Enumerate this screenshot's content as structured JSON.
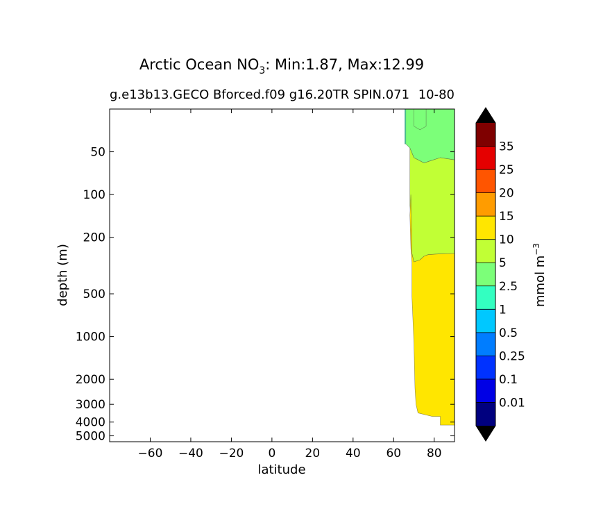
{
  "chart_data": {
    "type": "contourf",
    "title": "Arctic Ocean NO",
    "title_sub": "3",
    "title_rest": ": Min:1.87, Max:12.99",
    "subtitle": "g.e13b13.GECO Bforced.f09 g16.20TR SPIN.071",
    "subtitle_overlap": "10-80",
    "xlabel": "latitude",
    "ylabel": "depth (m)",
    "xlim": [
      -80,
      90
    ],
    "ylim": [
      5500,
      25
    ],
    "yscale": "log",
    "x_ticks": [
      -60,
      -40,
      -20,
      0,
      20,
      40,
      60,
      80
    ],
    "x_tick_labels": [
      "−60",
      "−40",
      "−20",
      "0",
      "20",
      "40",
      "60",
      "80"
    ],
    "y_ticks": [
      50,
      100,
      200,
      500,
      1000,
      2000,
      3000,
      4000,
      5000
    ],
    "y_tick_labels": [
      "50",
      "100",
      "200",
      "500",
      "1000",
      "2000",
      "3000",
      "4000",
      "5000"
    ],
    "regions": [
      {
        "level": "1-2.5",
        "color": "#33ffc1",
        "poly": [
          [
            65.5,
            25
          ],
          [
            70,
            25
          ],
          [
            70,
            33
          ],
          [
            73,
            35
          ],
          [
            76,
            33
          ],
          [
            76,
            25
          ],
          [
            66,
            25
          ],
          [
            66,
            44
          ],
          [
            65.5,
            44
          ]
        ]
      },
      {
        "level": "2.5-5",
        "color": "#7cff79",
        "poly": [
          [
            70,
            25
          ],
          [
            90,
            25
          ],
          [
            90,
            57
          ],
          [
            83,
            55
          ],
          [
            78,
            58
          ],
          [
            75,
            60
          ],
          [
            70,
            55
          ],
          [
            68,
            47
          ],
          [
            66,
            44
          ],
          [
            66,
            25
          ],
          [
            76,
            25
          ],
          [
            76,
            33
          ],
          [
            73,
            35
          ],
          [
            70,
            33
          ]
        ]
      },
      {
        "level": "5-10",
        "color": "#c1ff35",
        "poly": [
          [
            68,
            47
          ],
          [
            70,
            55
          ],
          [
            75,
            60
          ],
          [
            78,
            58
          ],
          [
            83,
            55
          ],
          [
            90,
            57
          ],
          [
            90,
            260
          ],
          [
            82,
            262
          ],
          [
            77,
            265
          ],
          [
            75,
            272
          ],
          [
            73,
            288
          ],
          [
            70,
            298
          ],
          [
            69,
            260
          ],
          [
            69,
            180
          ],
          [
            68,
            120
          ],
          [
            68,
            70
          ]
        ]
      },
      {
        "level": "10-15",
        "color": "#ffe600",
        "poly": [
          [
            69,
            180
          ],
          [
            69,
            260
          ],
          [
            70,
            298
          ],
          [
            73,
            288
          ],
          [
            75,
            272
          ],
          [
            77,
            265
          ],
          [
            82,
            262
          ],
          [
            90,
            260
          ],
          [
            90,
            4200
          ],
          [
            83,
            4200
          ],
          [
            83,
            3650
          ],
          [
            79,
            3650
          ],
          [
            72,
            3450
          ],
          [
            71,
            3000
          ],
          [
            70.5,
            2300
          ],
          [
            70,
            1100
          ],
          [
            69,
            520
          ],
          [
            69,
            300
          ],
          [
            68.5,
            240
          ],
          [
            68,
            140
          ],
          [
            68.5,
            100
          ]
        ]
      }
    ],
    "colorbar": {
      "label": "mmol m",
      "label_sup": "−3",
      "levels": [
        "0.01",
        "0.1",
        "0.25",
        "0.5",
        "1",
        "2.5",
        "5",
        "10",
        "15",
        "20",
        "25",
        "35"
      ],
      "colors": [
        "#00007f",
        "#0000e5",
        "#0032ff",
        "#007dff",
        "#00c8ff",
        "#33ffc1",
        "#7cff79",
        "#c1ff35",
        "#ffe600",
        "#ff9c00",
        "#ff5500",
        "#e50000",
        "#7f0000"
      ],
      "extend_colors": [
        "#000000",
        "#000000"
      ]
    }
  }
}
